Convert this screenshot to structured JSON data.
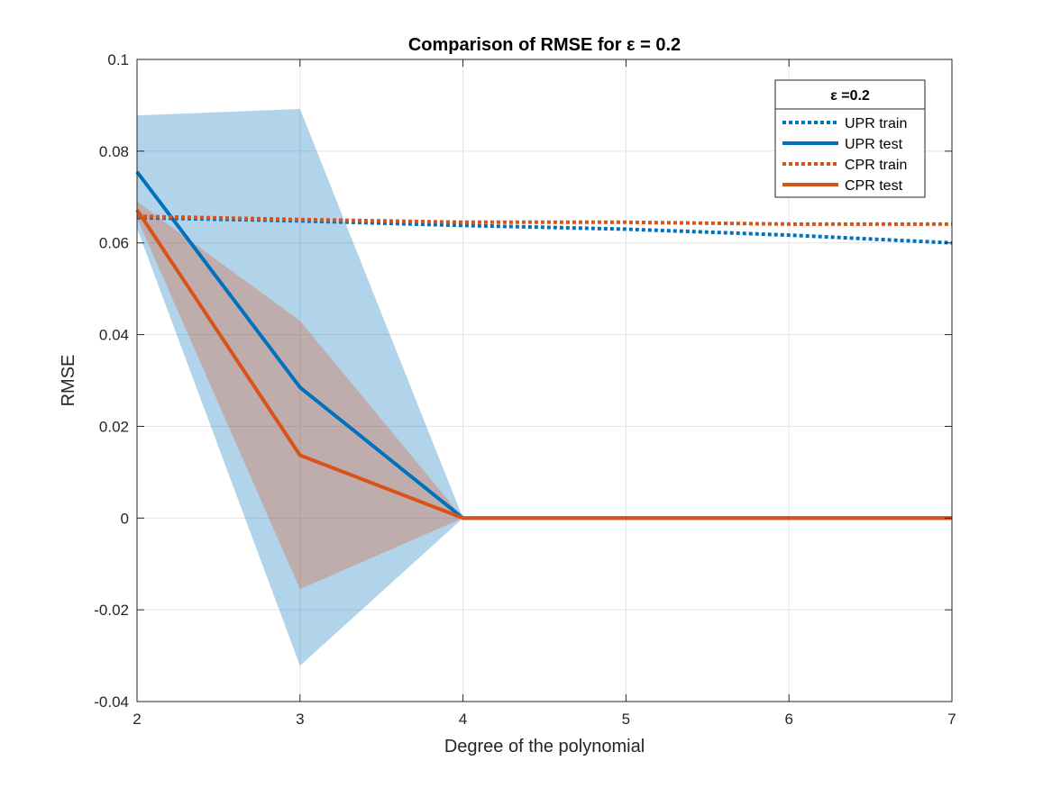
{
  "chart_data": {
    "type": "line",
    "title": "Comparison of RMSE for ε = 0.2",
    "xlabel": "Degree of the polynomial",
    "ylabel": "RMSE",
    "xlim": [
      2,
      7
    ],
    "ylim": [
      -0.04,
      0.1
    ],
    "xticks": [
      "2",
      "3",
      "4",
      "5",
      "6",
      "7"
    ],
    "yticks": [
      "-0.04",
      "-0.02",
      "0",
      "0.02",
      "0.04",
      "0.06",
      "0.08",
      "0.1"
    ],
    "grid": true,
    "legend_title": "ε =0.2",
    "legend_position": "top-right",
    "x": [
      2,
      3,
      4,
      5,
      6,
      7
    ],
    "series": [
      {
        "name": "UPR train",
        "style": "dotted",
        "color": "#0072BD",
        "values": [
          0.0655,
          0.0648,
          0.0638,
          0.063,
          0.0617,
          0.06
        ]
      },
      {
        "name": "UPR test",
        "style": "solid",
        "color": "#0072BD",
        "values": [
          0.0755,
          0.0285,
          0.0,
          0.0,
          0.0,
          0.0
        ]
      },
      {
        "name": "CPR train",
        "style": "dotted",
        "color": "#D95319",
        "values": [
          0.0658,
          0.0651,
          0.0645,
          0.0645,
          0.0641,
          0.0641
        ]
      },
      {
        "name": "CPR test",
        "style": "solid",
        "color": "#D95319",
        "values": [
          0.0672,
          0.0137,
          0.0,
          0.0,
          0.0,
          0.0
        ]
      }
    ],
    "bands": [
      {
        "of": "UPR test",
        "color": "#0072BD",
        "opacity": 0.3,
        "x": [
          2,
          3,
          4
        ],
        "upper": [
          0.0878,
          0.0892,
          0.0
        ],
        "lower": [
          0.0632,
          -0.0322,
          0.0
        ]
      },
      {
        "of": "CPR test",
        "color": "#D95319",
        "opacity": 0.3,
        "x": [
          2,
          3,
          4
        ],
        "upper": [
          0.069,
          0.043,
          0.0
        ],
        "lower": [
          0.0654,
          -0.0155,
          0.0
        ]
      }
    ]
  }
}
